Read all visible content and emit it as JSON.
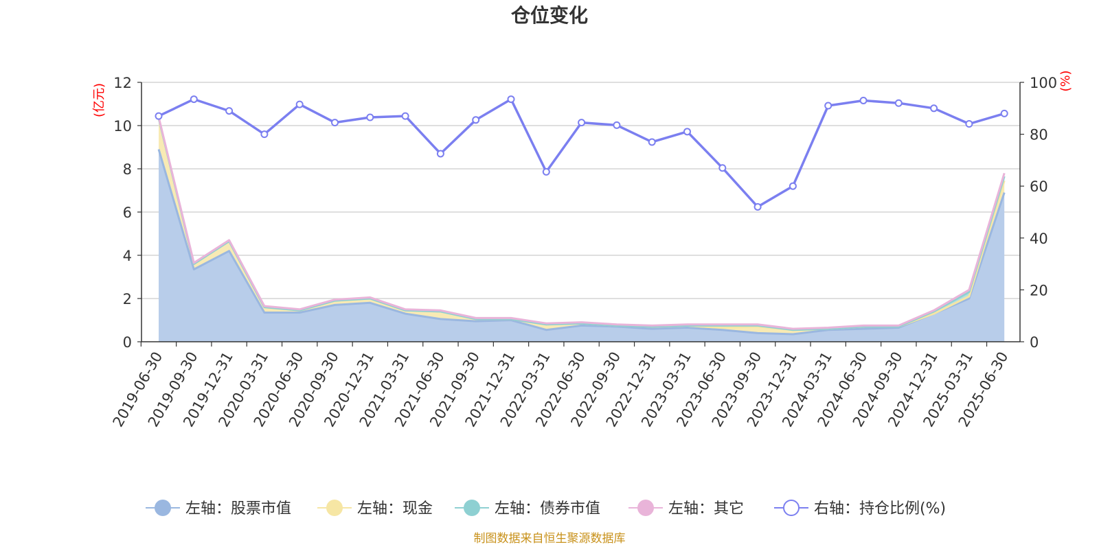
{
  "chart_data": {
    "type": "area",
    "title": "仓位变化",
    "left_axis_unit": "(亿元)",
    "right_axis_unit": "(%)",
    "source_text": "制图数据来自恒生聚源数据库",
    "ylim_left": [
      0,
      12
    ],
    "ylim_right": [
      0,
      100
    ],
    "yticks_left": [
      "0",
      "2",
      "4",
      "6",
      "8",
      "10",
      "12"
    ],
    "yticks_right": [
      "0",
      "20",
      "40",
      "60",
      "80",
      "100"
    ],
    "grid": true,
    "legend_position": "bottom",
    "categories": [
      "2019-06-30",
      "2019-09-30",
      "2019-12-31",
      "2020-03-31",
      "2020-06-30",
      "2020-09-30",
      "2020-12-31",
      "2021-03-31",
      "2021-06-30",
      "2021-09-30",
      "2021-12-31",
      "2022-03-31",
      "2022-06-30",
      "2022-09-30",
      "2022-12-31",
      "2023-03-31",
      "2023-06-30",
      "2023-09-30",
      "2023-12-31",
      "2024-03-31",
      "2024-06-30",
      "2024-09-30",
      "2024-12-31",
      "2025-03-31",
      "2025-06-30"
    ],
    "series": [
      {
        "name": "左轴：股票市值",
        "axis": "left",
        "color": "#9ab7e0",
        "fill": "#b8cdea",
        "values": [
          8.9,
          3.35,
          4.2,
          1.35,
          1.35,
          1.7,
          1.8,
          1.3,
          1.05,
          0.95,
          1.0,
          0.55,
          0.75,
          0.7,
          0.6,
          0.65,
          0.55,
          0.4,
          0.35,
          0.55,
          0.6,
          0.65,
          1.3,
          2.0,
          6.9
        ]
      },
      {
        "name": "左轴：现金",
        "axis": "left",
        "color": "#f6e6a4",
        "fill": "#f8eab4",
        "values": [
          1.45,
          0.25,
          0.45,
          0.25,
          0.1,
          0.2,
          0.2,
          0.15,
          0.35,
          0.1,
          0.05,
          0.25,
          0.1,
          0.05,
          0.1,
          0.1,
          0.1,
          0.3,
          0.2,
          0.05,
          0.1,
          0.05,
          0.0,
          0.1,
          0.55
        ]
      },
      {
        "name": "左轴：债券市值",
        "axis": "left",
        "color": "#8ed0d2",
        "fill": "#b4e0e2",
        "values": [
          0,
          0,
          0,
          0,
          0,
          0,
          0,
          0,
          0,
          0,
          0,
          0,
          0,
          0,
          0,
          0,
          0.1,
          0.05,
          0,
          0,
          0,
          0,
          0.1,
          0.2,
          0.2
        ]
      },
      {
        "name": "左轴：其它",
        "axis": "left",
        "color": "#e9b4d9",
        "fill": "#efc8e3",
        "values": [
          0.05,
          0.05,
          0.05,
          0.05,
          0.05,
          0.05,
          0.05,
          0.05,
          0.05,
          0.05,
          0.05,
          0.05,
          0.05,
          0.05,
          0.05,
          0.05,
          0.05,
          0.05,
          0.05,
          0.05,
          0.05,
          0.05,
          0.05,
          0.1,
          0.15
        ]
      },
      {
        "name": "右轴：持仓比例(%)",
        "axis": "right",
        "color": "#7b7ff0",
        "values": [
          87,
          93.5,
          89,
          80,
          91.5,
          84.5,
          86.5,
          87,
          72.5,
          85.5,
          93.5,
          65.5,
          84.5,
          83.5,
          77,
          81,
          67,
          52,
          60,
          91,
          93,
          92,
          90,
          84,
          88
        ]
      }
    ]
  }
}
